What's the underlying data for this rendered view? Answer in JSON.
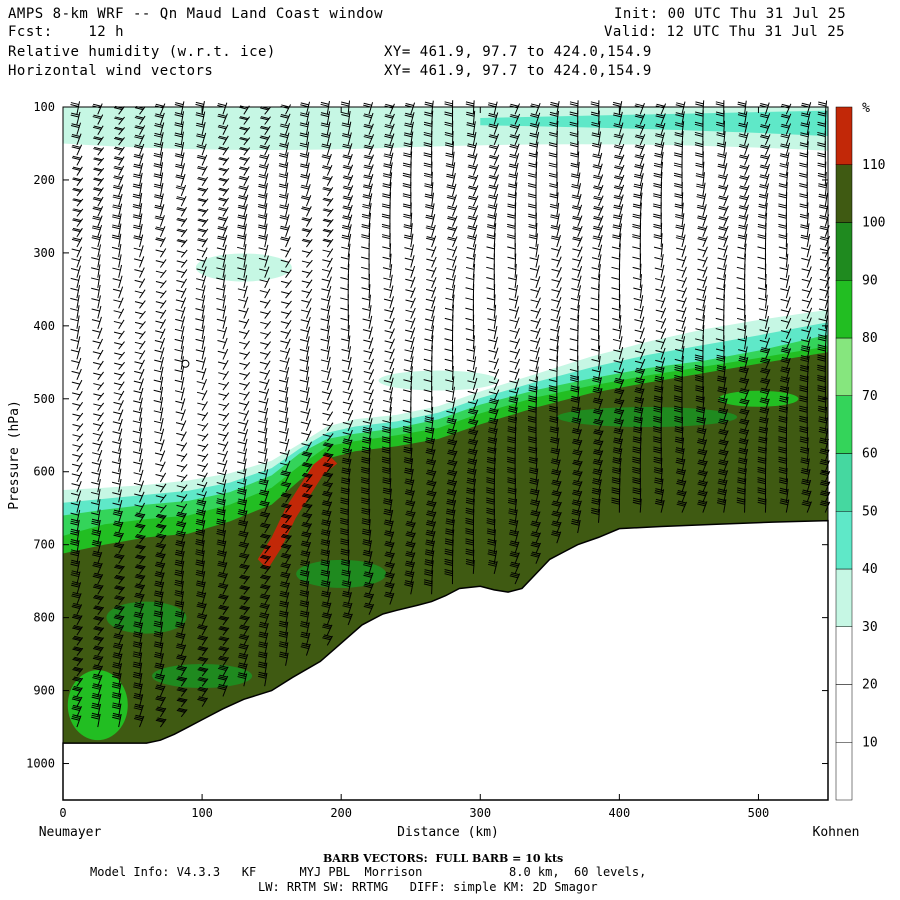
{
  "header": {
    "title": "AMPS 8-km WRF -- Qn Maud Land Coast window",
    "fcst_label": "Fcst:",
    "fcst_value": "12 h",
    "init_label": "Init:",
    "init_value": "00 UTC Thu 31 Jul 25",
    "valid_label": "Valid:",
    "valid_value": "12 UTC Thu 31 Jul 25",
    "field1": "Relative humidity (w.r.t. ice)",
    "field2": "Horizontal wind vectors",
    "xy1": "XY= 461.9, 97.7 to 424.0,154.9",
    "xy2": "XY= 461.9, 97.7 to 424.0,154.9"
  },
  "footer": {
    "barb_note": "BARB VECTORS:  FULL BARB = 10 kts",
    "model_info": "Model Info: V4.3.3   KF      MYJ PBL  Morrison            8.0 km,  60 levels,",
    "model_info2": "LW: RRTM SW: RRTMG   DIFF: simple KM: 2D Smagor"
  },
  "colors": {
    "rh_lt30": "#ffffff",
    "rh_30_40": "#c6f7e4",
    "rh_40_50": "#5fe8c8",
    "rh_50_60": "#45d8a0",
    "rh_60_70": "#34d45a",
    "rh_70_80": "#86e67e",
    "rh_80_90": "#22be22",
    "rh_90_100": "#1f8a1f",
    "rh_100_110": "#3f5a12",
    "rh_gt110": "#c22808",
    "terrain": "#ffffff",
    "barb": "#000000"
  },
  "chart_data": {
    "type": "heatmap",
    "title": "Relative humidity (w.r.t. ice) and horizontal wind vectors",
    "xlabel": "Distance (km)",
    "ylabel": "Pressure (hPa)",
    "xlim": [
      0,
      550
    ],
    "ylim": [
      1050,
      100
    ],
    "x_ticks": [
      0,
      100,
      200,
      300,
      400,
      500
    ],
    "y_ticks": [
      100,
      200,
      300,
      400,
      500,
      600,
      700,
      800,
      900,
      1000
    ],
    "x_start_label": "Neumayer",
    "x_end_label": "Kohnen",
    "colorbar_unit": "%",
    "colorbar_levels": [
      10,
      20,
      30,
      40,
      50,
      60,
      70,
      80,
      90,
      100,
      110
    ],
    "terrain_profile_hpa": {
      "x": [
        0,
        15,
        30,
        50,
        60,
        70,
        80,
        90,
        100,
        115,
        130,
        150,
        165,
        185,
        200,
        215,
        230,
        240,
        255,
        265,
        275,
        285,
        300,
        310,
        320,
        330,
        340,
        350,
        360,
        370,
        385,
        400,
        430,
        470,
        510,
        550
      ],
      "p": [
        972,
        972,
        972,
        972,
        972,
        968,
        960,
        950,
        940,
        925,
        912,
        900,
        882,
        860,
        835,
        810,
        795,
        790,
        783,
        778,
        770,
        760,
        757,
        762,
        765,
        760,
        740,
        720,
        710,
        700,
        690,
        678,
        675,
        672,
        669,
        667
      ]
    },
    "rh_layer_tops_hpa": {
      "x": [
        0,
        30,
        60,
        90,
        120,
        150,
        170,
        190,
        210,
        240,
        270,
        300,
        340,
        380,
        420,
        460,
        500,
        550
      ],
      "ge30": [
        625,
        622,
        618,
        612,
        602,
        585,
        562,
        538,
        528,
        522,
        510,
        490,
        466,
        442,
        422,
        405,
        392,
        378
      ],
      "ge60": [
        660,
        652,
        645,
        640,
        628,
        605,
        575,
        555,
        548,
        540,
        528,
        508,
        488,
        472,
        458,
        448,
        434,
        412
      ],
      "ge80": [
        688,
        672,
        665,
        660,
        645,
        622,
        592,
        565,
        558,
        550,
        540,
        520,
        498,
        482,
        468,
        456,
        444,
        428
      ],
      "ge100": [
        712,
        700,
        690,
        685,
        668,
        645,
        612,
        582,
        572,
        565,
        555,
        535,
        512,
        492,
        478,
        465,
        452,
        436
      ]
    },
    "rh_gt110_region": {
      "x": [
        140,
        150,
        160,
        170,
        180,
        190
      ],
      "p": [
        720,
        690,
        650,
        620,
        590,
        575
      ]
    },
    "moist_upper_band_hpa": [
      100,
      160
    ],
    "barb_columns_km": [
      10,
      25,
      40,
      55,
      70,
      85,
      100,
      115,
      130,
      145,
      160,
      175,
      190,
      205,
      220,
      235,
      250,
      265,
      280,
      295,
      310,
      325,
      340,
      355,
      370,
      385,
      400,
      415,
      430,
      445,
      460,
      475,
      490,
      505,
      520,
      535,
      548
    ]
  }
}
